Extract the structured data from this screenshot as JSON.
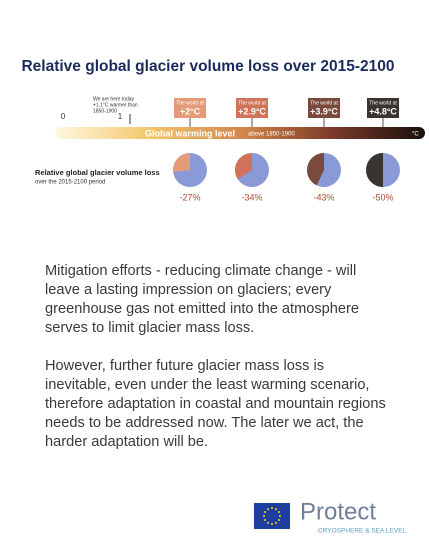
{
  "header": {
    "title": "Relative global glacier volume loss over 2015-2100"
  },
  "scale": {
    "today_note_1": "We are here today",
    "today_note_2": "+1.1°C warmer than",
    "today_note_3": "1850-1900",
    "ticks": [
      "0",
      "1"
    ],
    "bar_label": "Global warming level",
    "bar_sublabel": "above 1850-1900",
    "unit": "°C"
  },
  "pie_label": {
    "title": "Relative global glacier volume loss",
    "subtitle": "over the 2015-2100 period"
  },
  "scenarios": [
    {
      "caption": "The world at",
      "temp": "+2°C",
      "loss": -27,
      "loss_label": "-27%",
      "color": "#e59a78"
    },
    {
      "caption": "The world at",
      "temp": "+2.9°C",
      "loss": -34,
      "loss_label": "-34%",
      "color": "#d0735a"
    },
    {
      "caption": "The world at",
      "temp": "+3.9°C",
      "loss": -43,
      "loss_label": "-43%",
      "color": "#7a4a3c"
    },
    {
      "caption": "The world at",
      "temp": "+4.8°C",
      "loss": -50,
      "loss_label": "-50%",
      "color": "#3a3430"
    }
  ],
  "paragraphs": [
    "Mitigation efforts - reducing climate change - will leave a lasting impression on glaciers; every greenhouse gas not emitted into the atmosphere serves to limit glacier mass loss.",
    "However, further future glacier mass loss is inevitable, even under the least warming scenario, therefore adaptation in coastal and mountain regions needs to be addressed now. The later we act, the harder adaptation will be."
  ],
  "logo": {
    "name": "Protect",
    "tagline": "CRYOSPHERE & SEA LEVEL"
  }
}
